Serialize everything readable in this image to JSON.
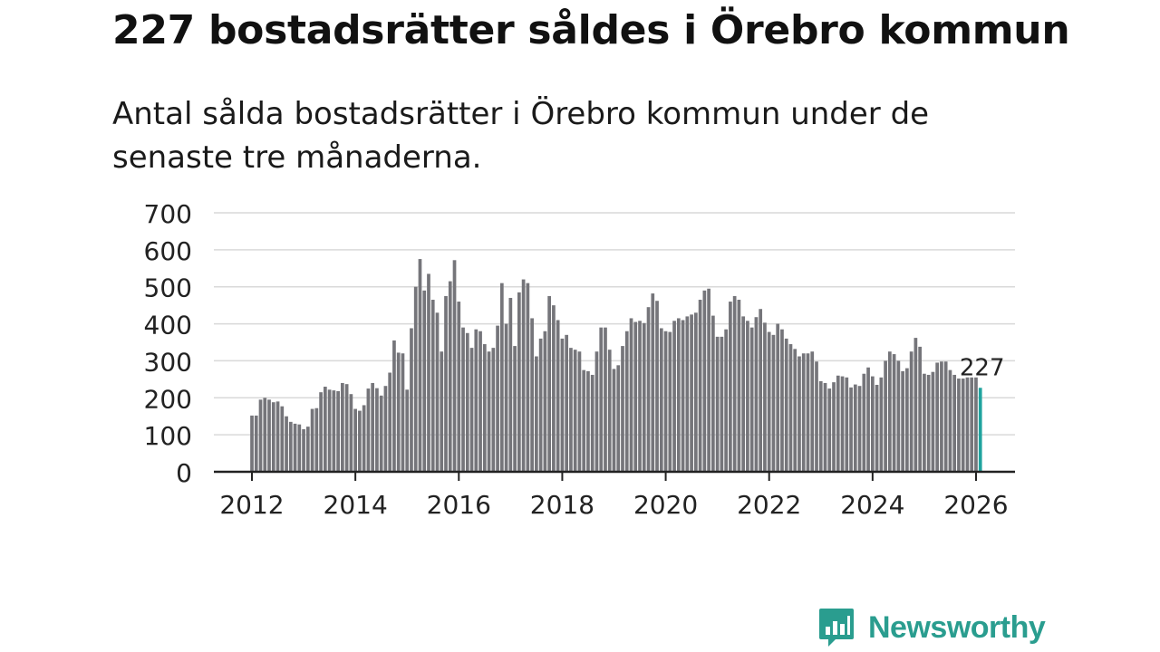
{
  "title": "227 bostadsrätter såldes i Örebro kommun",
  "subtitle": "Antal sålda bostadsrätter i Örebro kommun under de senaste tre månaderna.",
  "brand": {
    "name": "Newsworthy",
    "icon": "newsworthy-logo-icon"
  },
  "colors": {
    "bar": "#75757a",
    "highlight": "#20a39e",
    "grid": "#d9d9d9",
    "axis": "#222222",
    "text": "#222222",
    "brand": "#2a9d8f"
  },
  "chart_data": {
    "type": "bar",
    "title": "227 bostadsrätter såldes i Örebro kommun",
    "xlabel": "",
    "ylabel": "",
    "ylim": [
      0,
      700
    ],
    "yticks": [
      "0",
      "100",
      "200",
      "300",
      "400",
      "500",
      "600",
      "700"
    ],
    "xticks": [
      "2012",
      "2014",
      "2016",
      "2018",
      "2020",
      "2022",
      "2024",
      "2026"
    ],
    "x_start": 2012.0,
    "x_step": 0.08333,
    "last_label": "227",
    "values": [
      152,
      152,
      195,
      200,
      195,
      188,
      190,
      177,
      150,
      135,
      130,
      128,
      115,
      122,
      170,
      172,
      215,
      230,
      222,
      220,
      218,
      240,
      237,
      210,
      170,
      165,
      180,
      225,
      240,
      226,
      206,
      232,
      268,
      355,
      322,
      320,
      222,
      388,
      500,
      575,
      490,
      535,
      465,
      430,
      325,
      475,
      515,
      572,
      460,
      390,
      375,
      335,
      385,
      380,
      345,
      325,
      335,
      395,
      510,
      400,
      470,
      340,
      485,
      520,
      510,
      415,
      312,
      360,
      380,
      475,
      450,
      410,
      360,
      370,
      335,
      330,
      325,
      275,
      272,
      262,
      325,
      390,
      390,
      330,
      278,
      288,
      340,
      380,
      415,
      405,
      408,
      402,
      445,
      482,
      462,
      388,
      380,
      378,
      408,
      415,
      410,
      420,
      425,
      430,
      465,
      490,
      495,
      422,
      365,
      365,
      385,
      460,
      475,
      465,
      420,
      408,
      390,
      418,
      440,
      403,
      378,
      370,
      400,
      385,
      360,
      345,
      332,
      312,
      320,
      320,
      325,
      298,
      245,
      240,
      225,
      242,
      260,
      258,
      255,
      228,
      236,
      232,
      265,
      282,
      258,
      235,
      255,
      300,
      325,
      318,
      300,
      272,
      280,
      325,
      362,
      338,
      265,
      262,
      270,
      295,
      298,
      298,
      275,
      262,
      252,
      252,
      255,
      255,
      255,
      227
    ]
  }
}
